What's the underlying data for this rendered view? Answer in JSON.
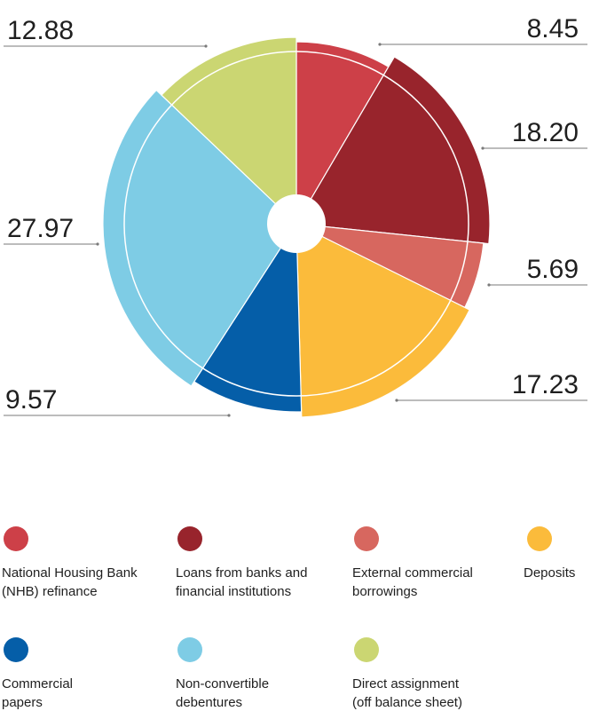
{
  "chart_data": {
    "type": "pie",
    "donut": true,
    "start_angle_deg": 0,
    "direction": "clockwise",
    "legend_placement": "bottom",
    "slices": [
      {
        "label": "National Housing Bank\n(NHB) refinance",
        "value": 8.45,
        "value_text": "8.45",
        "color": "#cd4048"
      },
      {
        "label": "Loans from banks and\nfinancial institutions",
        "value": 18.2,
        "value_text": "18.20",
        "color": "#98242c"
      },
      {
        "label": "External commercial\nborrowings",
        "value": 5.69,
        "value_text": "5.69",
        "color": "#d7675f"
      },
      {
        "label": "Deposits",
        "value": 17.23,
        "value_text": "17.23",
        "color": "#fbbb3b"
      },
      {
        "label": "Commercial\npapers",
        "value": 9.57,
        "value_text": "9.57",
        "color": "#055ea8"
      },
      {
        "label": "Non-convertible\ndebentures",
        "value": 27.97,
        "value_text": "27.97",
        "color": "#7ecce5"
      },
      {
        "label": "Direct assignment\n(off balance sheet)",
        "value": 12.88,
        "value_text": "12.88",
        "color": "#cbd672"
      }
    ]
  }
}
